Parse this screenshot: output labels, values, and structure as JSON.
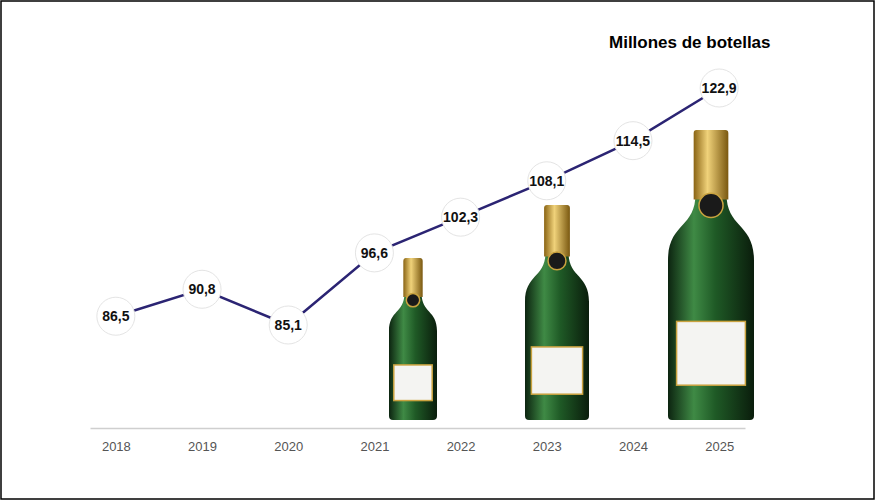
{
  "chart_data": {
    "type": "line",
    "title": "Millones de botellas",
    "categories": [
      "2018",
      "2019",
      "2020",
      "2021",
      "2022",
      "2023",
      "2024",
      "2025"
    ],
    "values": [
      86.5,
      90.8,
      85.1,
      96.6,
      102.3,
      108.1,
      114.5,
      122.9
    ],
    "value_labels": [
      "86,5",
      "90,8",
      "85,1",
      "96,6",
      "102,3",
      "108,1",
      "114,5",
      "122,9"
    ],
    "color": "#2b2473",
    "data_labels": true,
    "tick_labels": "x"
  }
}
